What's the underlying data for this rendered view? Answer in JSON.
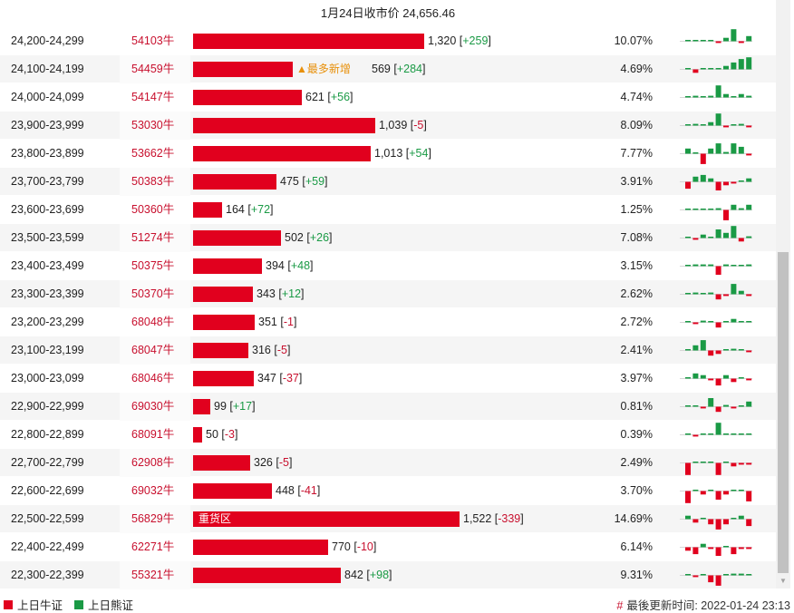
{
  "header": {
    "close_label": "1月24日收市价",
    "close_value": "24,656.46"
  },
  "colors": {
    "bull": "#e1001e",
    "bear": "#1a9a45"
  },
  "chart_data": {
    "type": "bar",
    "title": "1月24日收市价 24,656.46",
    "value_max": 1522,
    "rows": [
      {
        "range": "24,200-24,299",
        "code": "54103牛",
        "value": 1320,
        "change": "+259",
        "pct": "10.07%",
        "tag": "",
        "spark": [
          0,
          0,
          0,
          0,
          -1,
          2,
          7,
          -1,
          3
        ]
      },
      {
        "range": "24,100-24,199",
        "code": "54459牛",
        "value": 569,
        "change": "+284",
        "pct": "4.69%",
        "tag": "▲最多新增",
        "spark": [
          0,
          -2,
          0,
          0,
          0,
          2,
          4,
          6,
          7
        ]
      },
      {
        "range": "24,000-24,099",
        "code": "54147牛",
        "value": 621,
        "change": "+56",
        "pct": "4.74%",
        "tag": "",
        "spark": [
          0,
          1,
          0,
          1,
          7,
          2,
          0,
          2,
          1
        ]
      },
      {
        "range": "23,900-23,999",
        "code": "53030牛",
        "value": 1039,
        "change": "-5",
        "pct": "8.09%",
        "tag": "",
        "spark": [
          0,
          1,
          0,
          2,
          7,
          -1,
          0,
          1,
          -1
        ]
      },
      {
        "range": "23,800-23,899",
        "code": "53662牛",
        "value": 1013,
        "change": "+54",
        "pct": "7.77%",
        "tag": "",
        "spark": [
          3,
          0,
          -6,
          3,
          6,
          1,
          6,
          4,
          -1
        ]
      },
      {
        "range": "23,700-23,799",
        "code": "50383牛",
        "value": 475,
        "change": "+59",
        "pct": "3.91%",
        "tag": "",
        "spark": [
          -4,
          3,
          4,
          2,
          -5,
          -2,
          -1,
          0,
          2
        ]
      },
      {
        "range": "23,600-23,699",
        "code": "50360牛",
        "value": 164,
        "change": "+72",
        "pct": "1.25%",
        "tag": "",
        "spark": [
          0,
          0,
          0,
          0,
          1,
          -6,
          3,
          1,
          3
        ]
      },
      {
        "range": "23,500-23,599",
        "code": "51274牛",
        "value": 502,
        "change": "+26",
        "pct": "7.08%",
        "tag": "",
        "spark": [
          0,
          -1,
          2,
          0,
          5,
          3,
          7,
          -2,
          1
        ]
      },
      {
        "range": "23,400-23,499",
        "code": "50375牛",
        "value": 394,
        "change": "+48",
        "pct": "3.15%",
        "tag": "",
        "spark": [
          0,
          1,
          1,
          1,
          -5,
          1,
          0,
          0,
          1
        ]
      },
      {
        "range": "23,300-23,399",
        "code": "50370牛",
        "value": 343,
        "change": "+12",
        "pct": "2.62%",
        "tag": "",
        "spark": [
          0,
          1,
          0,
          1,
          -3,
          -1,
          6,
          2,
          -1
        ]
      },
      {
        "range": "23,200-23,299",
        "code": "68048牛",
        "value": 351,
        "change": "-1",
        "pct": "2.72%",
        "tag": "",
        "spark": [
          0,
          -1,
          1,
          0,
          -3,
          0,
          2,
          0,
          0
        ]
      },
      {
        "range": "23,100-23,199",
        "code": "68047牛",
        "value": 316,
        "change": "-5",
        "pct": "2.41%",
        "tag": "",
        "spark": [
          0,
          3,
          6,
          -3,
          -2,
          0,
          1,
          0,
          -1
        ]
      },
      {
        "range": "23,000-23,099",
        "code": "68046牛",
        "value": 347,
        "change": "-37",
        "pct": "3.97%",
        "tag": "",
        "spark": [
          0,
          3,
          2,
          -1,
          -4,
          2,
          -2,
          0,
          -1
        ]
      },
      {
        "range": "22,900-22,999",
        "code": "69030牛",
        "value": 99,
        "change": "+17",
        "pct": "0.81%",
        "tag": "",
        "spark": [
          0,
          0,
          -1,
          5,
          -3,
          1,
          -1,
          0,
          3
        ]
      },
      {
        "range": "22,800-22,899",
        "code": "68091牛",
        "value": 50,
        "change": "-3",
        "pct": "0.39%",
        "tag": "",
        "spark": [
          0,
          -1,
          0,
          0,
          7,
          0,
          0,
          0,
          0
        ]
      },
      {
        "range": "22,700-22,799",
        "code": "62908牛",
        "value": 326,
        "change": "-5",
        "pct": "2.49%",
        "tag": "",
        "spark": [
          -7,
          0,
          0,
          0,
          -7,
          0,
          -2,
          -1,
          -1
        ]
      },
      {
        "range": "22,600-22,699",
        "code": "69032牛",
        "value": 448,
        "change": "-41",
        "pct": "3.70%",
        "tag": "",
        "spark": [
          -7,
          0,
          -2,
          0,
          -5,
          -2,
          0,
          0,
          -6
        ]
      },
      {
        "range": "22,500-22,599",
        "code": "56829牛",
        "value": 1522,
        "change": "-339",
        "pct": "14.69%",
        "tag": "重货区",
        "spark": [
          2,
          -2,
          0,
          -3,
          -6,
          -3,
          0,
          2,
          -4
        ]
      },
      {
        "range": "22,400-22,499",
        "code": "62271牛",
        "value": 770,
        "change": "-10",
        "pct": "6.14%",
        "tag": "",
        "spark": [
          -2,
          -4,
          2,
          -1,
          -5,
          0,
          -4,
          -1,
          -1
        ]
      },
      {
        "range": "22,300-22,399",
        "code": "55321牛",
        "value": 842,
        "change": "+98",
        "pct": "9.31%",
        "tag": "",
        "spark": [
          0,
          -1,
          0,
          -4,
          -6,
          0,
          1,
          1,
          0
        ]
      }
    ]
  },
  "legend": {
    "bull_label": "上日牛证",
    "bear_label": "上日熊证"
  },
  "footer": {
    "updated_label": "最後更新时间:",
    "updated_value": "2022-01-24 23:13"
  }
}
